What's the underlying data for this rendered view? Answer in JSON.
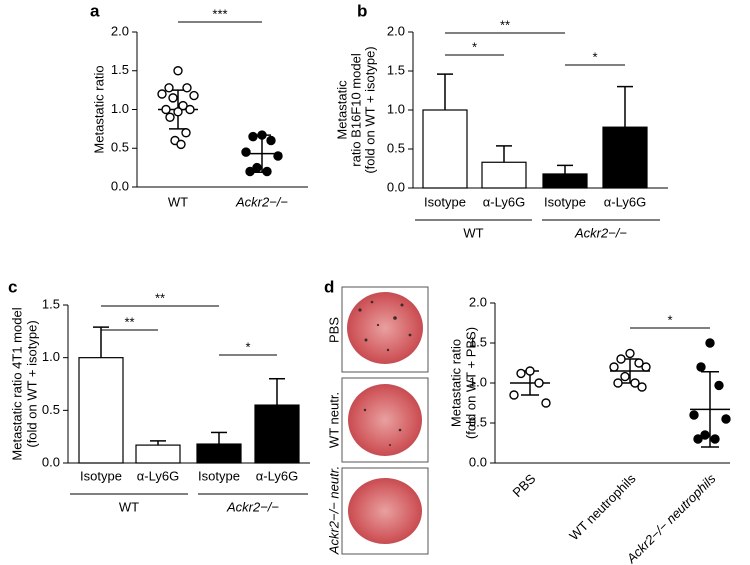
{
  "chart_data": [
    {
      "type": "dot",
      "panel": "a",
      "ylabel": [
        "Metastatic ratio"
      ],
      "categories": [
        "WT",
        "Ackr2−/−"
      ],
      "points": [
        [
          1.5,
          1.28,
          1.28,
          1.2,
          1.18,
          1.15,
          1.05,
          1.0,
          1.0,
          0.97,
          0.9,
          0.7,
          0.6,
          0.55
        ],
        [
          0.67,
          0.65,
          0.6,
          0.45,
          0.4,
          0.25,
          0.2,
          0.2
        ]
      ],
      "means": [
        1.0,
        0.43
      ],
      "errors": [
        0.25,
        0.24
      ],
      "fills": [
        "#ffffff",
        "#000000"
      ],
      "ylim": [
        0,
        2.0
      ],
      "yticks": [
        {
          "value": 0,
          "label": "0.0"
        },
        0.5,
        {
          "value": 1,
          "label": "1.0"
        },
        1.5,
        {
          "value": 2,
          "label": "2.0"
        }
      ],
      "annotations": [
        "***"
      ]
    },
    {
      "type": "bar",
      "panel": "b",
      "ylabel": [
        "Metastatic",
        "ratio B16F10 model",
        "(fold on WT + isotype)"
      ],
      "categories": [
        "Isotype",
        "α-Ly6G",
        "Isotype",
        "α-Ly6G"
      ],
      "values": [
        1.0,
        0.33,
        0.18,
        0.78
      ],
      "errors": [
        0.46,
        0.21,
        0.11,
        0.52
      ],
      "colors": [
        "#ffffff",
        "#ffffff",
        "#000000",
        "#000000"
      ],
      "groups": [
        "WT",
        "Ackr2−/−"
      ],
      "ylim": [
        0,
        2.0
      ],
      "yticks": [
        {
          "value": 0,
          "label": "0.0"
        },
        0.5,
        {
          "value": 1,
          "label": "1.0"
        },
        1.5,
        {
          "value": 2,
          "label": "2.0"
        }
      ],
      "annotations": [
        "**",
        "*",
        "*"
      ]
    },
    {
      "type": "bar",
      "panel": "c",
      "ylabel": [
        "Metastatic ratio 4T1 model",
        "(fold on WT + isotype)"
      ],
      "categories": [
        "Isotype",
        "α-Ly6G",
        "Isotype",
        "α-Ly6G"
      ],
      "values": [
        1.0,
        0.17,
        0.18,
        0.55
      ],
      "errors": [
        0.29,
        0.04,
        0.11,
        0.25
      ],
      "colors": [
        "#ffffff",
        "#ffffff",
        "#000000",
        "#000000"
      ],
      "groups": [
        "WT",
        "Ackr2−/−"
      ],
      "ylim": [
        0,
        1.5
      ],
      "yticks": [
        {
          "value": 0,
          "label": "0.0"
        },
        0.5,
        {
          "value": 1,
          "label": "1.0"
        },
        1.5
      ],
      "annotations": [
        "**",
        "**",
        "*"
      ]
    },
    {
      "type": "dot",
      "panel": "d",
      "image_labels": [
        "PBS",
        "WT neutr.",
        "Ackr2−/− neutr."
      ],
      "ylabel": [
        "Metastatic ratio",
        "(fold on WT + PBS)"
      ],
      "categories": [
        "PBS",
        "WT neutrophils",
        "Ackr2−/− neutrophils"
      ],
      "points": [
        [
          1.15,
          1.12,
          1.0,
          0.85,
          0.75
        ],
        [
          1.37,
          1.3,
          1.25,
          1.2,
          1.2,
          1.08,
          1.0,
          1.0,
          0.95
        ],
        [
          1.5,
          1.2,
          0.97,
          0.6,
          0.55,
          0.35,
          0.3,
          0.3
        ]
      ],
      "means": [
        1.0,
        1.15,
        0.67
      ],
      "errors": [
        0.15,
        0.15,
        0.47
      ],
      "fills": [
        "#ffffff",
        "#ffffff",
        "#000000"
      ],
      "ylim": [
        0,
        2.0
      ],
      "yticks": [
        {
          "value": 0,
          "label": "0.0"
        },
        0.5,
        {
          "value": 1,
          "label": "1.0"
        },
        1.5,
        {
          "value": 2,
          "label": "2.0"
        }
      ],
      "annotations": [
        "*"
      ]
    }
  ]
}
